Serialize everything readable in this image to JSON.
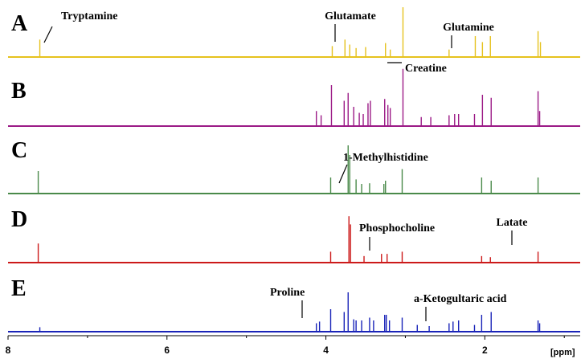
{
  "chart_data": {
    "type": "line",
    "title": "",
    "xlabel": "[ppm]",
    "xlim": [
      8.0,
      0.8
    ],
    "x_reversed": true,
    "x_ticks": [
      8,
      6,
      4,
      2
    ],
    "x_tick_labels": [
      "8",
      "6",
      "4",
      "2"
    ],
    "series": [
      {
        "name": "A",
        "color": "#e6c21e",
        "peaks": [
          [
            7.6,
            0.35
          ],
          [
            3.92,
            0.22
          ],
          [
            3.76,
            0.35
          ],
          [
            3.7,
            0.25
          ],
          [
            3.62,
            0.18
          ],
          [
            3.5,
            0.2
          ],
          [
            3.25,
            0.28
          ],
          [
            3.19,
            0.15
          ],
          [
            3.03,
            1.0
          ],
          [
            2.45,
            0.15
          ],
          [
            2.12,
            0.42
          ],
          [
            2.03,
            0.3
          ],
          [
            1.93,
            0.42
          ],
          [
            1.33,
            0.52
          ],
          [
            1.3,
            0.3
          ]
        ]
      },
      {
        "name": "B",
        "color": "#9b1a86",
        "peaks": [
          [
            3.93,
            0.68
          ],
          [
            4.12,
            0.25
          ],
          [
            4.06,
            0.18
          ],
          [
            3.77,
            0.42
          ],
          [
            3.72,
            0.55
          ],
          [
            3.65,
            0.32
          ],
          [
            3.58,
            0.22
          ],
          [
            3.53,
            0.2
          ],
          [
            3.47,
            0.38
          ],
          [
            3.44,
            0.42
          ],
          [
            3.26,
            0.45
          ],
          [
            3.22,
            0.35
          ],
          [
            3.19,
            0.3
          ],
          [
            3.03,
            0.95
          ],
          [
            2.8,
            0.15
          ],
          [
            2.68,
            0.15
          ],
          [
            2.45,
            0.18
          ],
          [
            2.38,
            0.2
          ],
          [
            2.33,
            0.2
          ],
          [
            2.13,
            0.2
          ],
          [
            2.03,
            0.52
          ],
          [
            1.92,
            0.47
          ],
          [
            1.33,
            0.58
          ],
          [
            1.31,
            0.25
          ]
        ]
      },
      {
        "name": "C",
        "color": "#4a8a4a",
        "peaks": [
          [
            7.62,
            0.35
          ],
          [
            3.94,
            0.25
          ],
          [
            3.72,
            0.75
          ],
          [
            3.7,
            0.6
          ],
          [
            3.62,
            0.22
          ],
          [
            3.55,
            0.15
          ],
          [
            3.45,
            0.16
          ],
          [
            3.27,
            0.15
          ],
          [
            3.25,
            0.2
          ],
          [
            3.04,
            0.38
          ],
          [
            2.04,
            0.25
          ],
          [
            1.92,
            0.2
          ],
          [
            1.33,
            0.25
          ]
        ]
      },
      {
        "name": "D",
        "color": "#cc1a1a",
        "peaks": [
          [
            7.62,
            0.35
          ],
          [
            3.94,
            0.2
          ],
          [
            3.71,
            0.85
          ],
          [
            3.69,
            0.7
          ],
          [
            3.52,
            0.12
          ],
          [
            3.3,
            0.16
          ],
          [
            3.23,
            0.16
          ],
          [
            3.04,
            0.2
          ],
          [
            2.04,
            0.12
          ],
          [
            1.93,
            0.1
          ],
          [
            1.33,
            0.2
          ]
        ]
      },
      {
        "name": "E",
        "color": "#1a24b8",
        "peaks": [
          [
            7.6,
            0.08
          ],
          [
            4.12,
            0.15
          ],
          [
            4.08,
            0.18
          ],
          [
            3.94,
            0.4
          ],
          [
            3.72,
            0.7
          ],
          [
            3.77,
            0.35
          ],
          [
            3.65,
            0.22
          ],
          [
            3.62,
            0.2
          ],
          [
            3.55,
            0.2
          ],
          [
            3.45,
            0.25
          ],
          [
            3.4,
            0.2
          ],
          [
            3.26,
            0.3
          ],
          [
            3.24,
            0.3
          ],
          [
            3.2,
            0.2
          ],
          [
            3.04,
            0.25
          ],
          [
            2.85,
            0.12
          ],
          [
            2.7,
            0.1
          ],
          [
            2.45,
            0.15
          ],
          [
            2.4,
            0.18
          ],
          [
            2.33,
            0.2
          ],
          [
            2.13,
            0.12
          ],
          [
            2.04,
            0.3
          ],
          [
            1.92,
            0.35
          ],
          [
            1.33,
            0.2
          ],
          [
            1.31,
            0.15
          ]
        ]
      }
    ],
    "panel_labels": [
      "A",
      "B",
      "C",
      "D",
      "E"
    ],
    "annotations": [
      {
        "panel": "A",
        "text": "Tryptamine"
      },
      {
        "panel": "A",
        "text": "Glutamate"
      },
      {
        "panel": "A",
        "text": "Glutamine"
      },
      {
        "panel": "B",
        "text": "Creatine"
      },
      {
        "panel": "C",
        "text": "1-Methylhistidine"
      },
      {
        "panel": "D",
        "text": "Phosphocholine"
      },
      {
        "panel": "D",
        "text": "Latate"
      },
      {
        "panel": "E",
        "text": "Proline"
      },
      {
        "panel": "E",
        "text": "a-Ketogultaric acid"
      }
    ]
  }
}
